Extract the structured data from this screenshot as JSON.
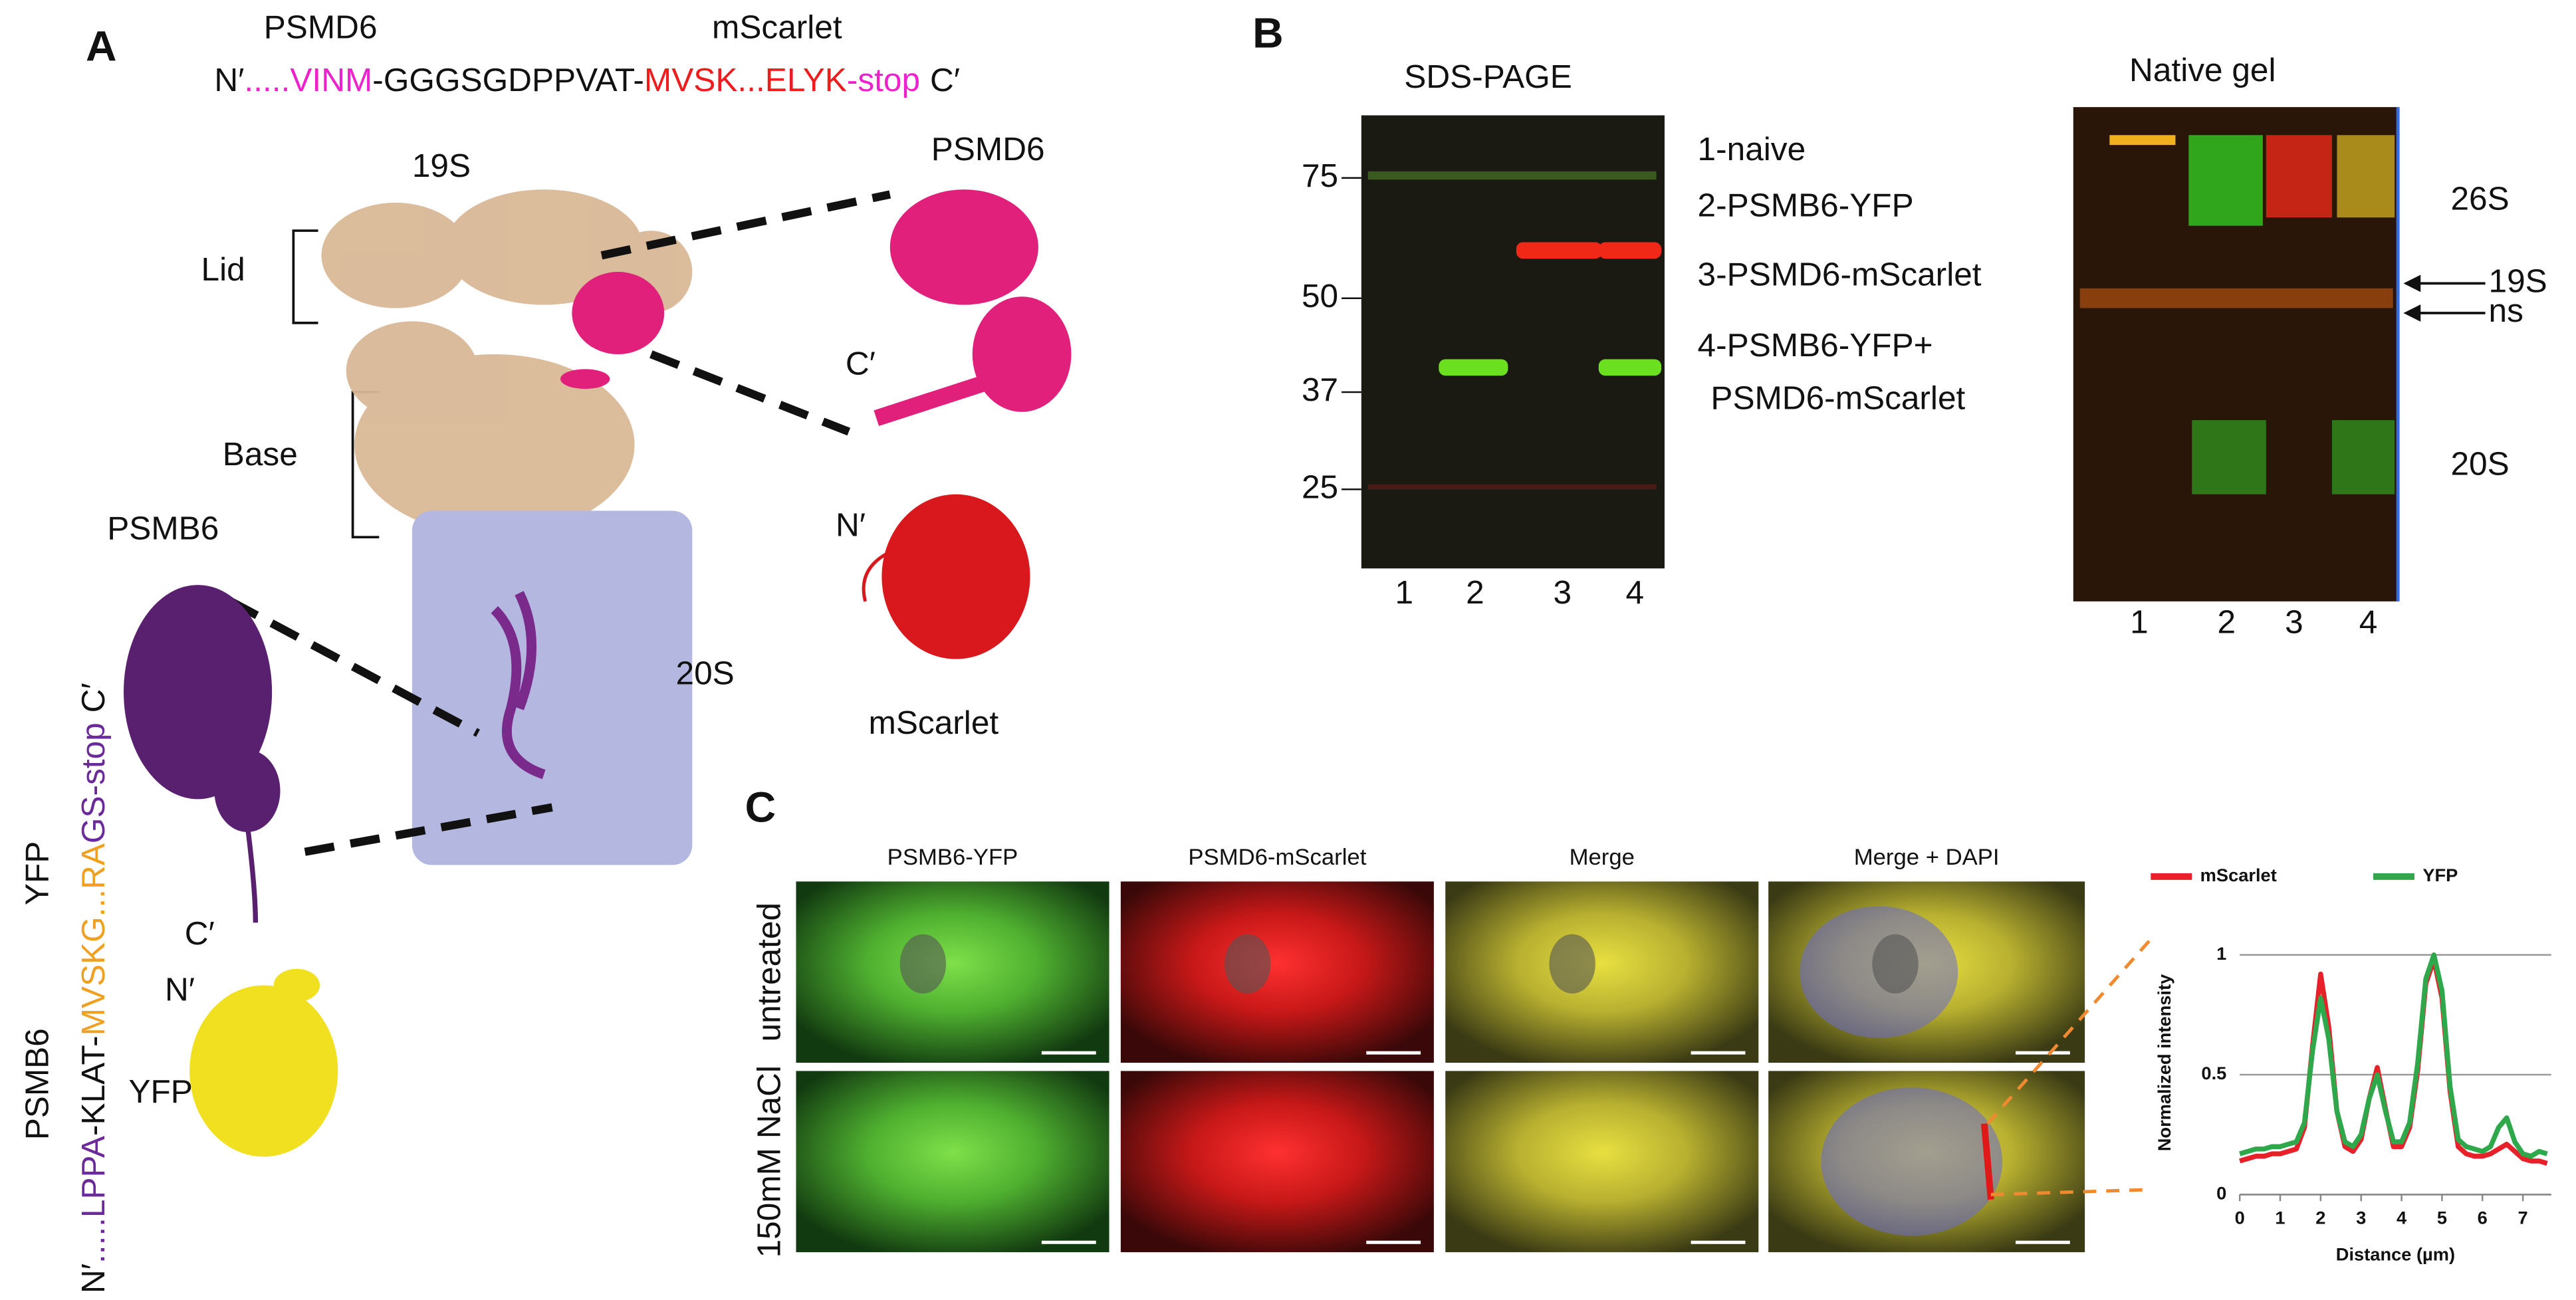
{
  "panel_a": {
    "label": "A",
    "psmd6_top": "PSMD6",
    "mscarlet_top": "mScarlet",
    "sequence_psmd6": [
      "N′",
      ".....VINM",
      "-GGGSGDPPVAT-",
      "MVSK...ELYK",
      "-stop",
      "C′"
    ],
    "l19s": "19S",
    "lid": "Lid",
    "base": "Base",
    "l20s": "20S",
    "psmd6": "PSMD6",
    "psmd6_c": "C′",
    "mscarlet_n": "N′",
    "mscarlet": "mScarlet",
    "psmb6": "PSMB6",
    "psmb6_c": "C′",
    "yfp_n": "N′",
    "yfp": "YFP",
    "vertical_yfp": "YFP",
    "vertical_psmb6": "PSMB6",
    "sequence_psmb6": [
      "N′",
      ".....LPPA",
      "-KLAT-",
      "MVSKG...RA",
      "GS-stop",
      "C′"
    ]
  },
  "panel_b": {
    "label": "B",
    "sds_title": "SDS-PAGE",
    "native_title": "Native gel",
    "ladder": [
      "75",
      "50",
      "37",
      "25"
    ],
    "legend": [
      "1-naive",
      "2-PSMB6-YFP",
      "3-PSMD6-mScarlet",
      "4-PSMB6-YFP+",
      "PSMD6-mScarlet"
    ],
    "sds_lanes": [
      "1",
      "2",
      "3",
      "4"
    ],
    "native_lanes": [
      "1",
      "2",
      "3",
      "4"
    ],
    "native_labels": [
      "26S",
      "19S",
      "ns",
      "20S"
    ]
  },
  "panel_c": {
    "label": "C",
    "columns": [
      "PSMB6-YFP",
      "PSMD6-mScarlet",
      "Merge",
      "Merge + DAPI"
    ],
    "rows": [
      "untreated",
      "150mM NaCl"
    ]
  },
  "chart_data": {
    "type": "line",
    "y_label": "Normalized intensity",
    "x_label": "Distance (µm)",
    "x": [
      0,
      0.2,
      0.4,
      0.6,
      0.8,
      1,
      1.2,
      1.4,
      1.6,
      1.8,
      2,
      2.2,
      2.4,
      2.6,
      2.8,
      3,
      3.2,
      3.4,
      3.6,
      3.8,
      4,
      4.2,
      4.4,
      4.6,
      4.8,
      5,
      5.2,
      5.4,
      5.6,
      5.8,
      6,
      6.2,
      6.4,
      6.6,
      6.8,
      7,
      7.2,
      7.4,
      7.6
    ],
    "series": [
      {
        "name": "mScarlet",
        "color": "#e8202a",
        "values": [
          0.14,
          0.15,
          0.16,
          0.16,
          0.17,
          0.17,
          0.18,
          0.19,
          0.28,
          0.62,
          0.92,
          0.7,
          0.35,
          0.2,
          0.18,
          0.23,
          0.4,
          0.53,
          0.36,
          0.2,
          0.2,
          0.28,
          0.52,
          0.88,
          0.98,
          0.82,
          0.43,
          0.2,
          0.17,
          0.16,
          0.16,
          0.17,
          0.19,
          0.21,
          0.18,
          0.15,
          0.14,
          0.14,
          0.13
        ]
      },
      {
        "name": "YFP",
        "color": "#2ea84a",
        "values": [
          0.17,
          0.18,
          0.19,
          0.19,
          0.2,
          0.2,
          0.21,
          0.22,
          0.3,
          0.6,
          0.82,
          0.65,
          0.35,
          0.22,
          0.2,
          0.25,
          0.4,
          0.5,
          0.35,
          0.22,
          0.22,
          0.3,
          0.55,
          0.9,
          1,
          0.85,
          0.45,
          0.23,
          0.2,
          0.19,
          0.18,
          0.2,
          0.28,
          0.32,
          0.22,
          0.17,
          0.16,
          0.18,
          0.17
        ]
      }
    ],
    "xlim": [
      0,
      7.7
    ],
    "ylim": [
      0,
      1.1
    ],
    "xticks": [
      0,
      1,
      2,
      3,
      4,
      5,
      6,
      7
    ],
    "yticks": [
      0,
      0.5,
      1
    ],
    "grid": true
  }
}
